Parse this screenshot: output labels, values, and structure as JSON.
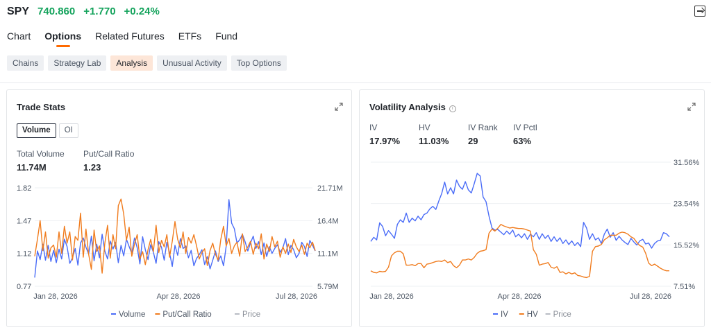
{
  "header": {
    "symbol": "SPY",
    "price": "740.860",
    "change": "+1.770",
    "change_pct": "+0.24%",
    "up_color": "#14a35c"
  },
  "tabs": [
    {
      "label": "Chart",
      "active": false
    },
    {
      "label": "Options",
      "active": true
    },
    {
      "label": "Related Futures",
      "active": false
    },
    {
      "label": "ETFs",
      "active": false
    },
    {
      "label": "Fund",
      "active": false
    }
  ],
  "subtabs": [
    {
      "label": "Chains",
      "active": false
    },
    {
      "label": "Strategy Lab",
      "active": false
    },
    {
      "label": "Analysis",
      "active": true
    },
    {
      "label": "Unusual Activity",
      "active": false
    },
    {
      "label": "Top Options",
      "active": false
    }
  ],
  "trade_stats": {
    "title": "Trade Stats",
    "toggle": [
      "Volume",
      "OI"
    ],
    "total_volume_label": "Total Volume",
    "total_volume": "11.74M",
    "pc_ratio_label": "Put/Call Ratio",
    "pc_ratio": "1.23"
  },
  "volatility": {
    "title": "Volatility Analysis",
    "iv_label": "IV",
    "iv": "17.97%",
    "hv_label": "HV",
    "hv": "11.03%",
    "rank_label": "IV Rank",
    "rank": "29",
    "pctl_label": "IV Pctl",
    "pctl": "63%"
  },
  "chart_data": [
    {
      "type": "line",
      "x_ticks": [
        "Jan 28, 2026",
        "Apr 28, 2026",
        "Jul 28, 2026"
      ],
      "y_left_ticks": [
        "1.82",
        "1.47",
        "1.12",
        "0.77"
      ],
      "y_left_range": [
        0.77,
        1.82
      ],
      "y_right_ticks": [
        "21.71M",
        "16.4M",
        "11.1M",
        "5.79M"
      ],
      "y_right_range": [
        5.79,
        21.71
      ],
      "legend": [
        "Volume",
        "Put/Call Ratio",
        "Price"
      ],
      "colors": {
        "Volume": "#4a6cf7",
        "Put/Call Ratio": "#f07c1e",
        "Price": "#b8bcc4"
      },
      "series": [
        {
          "name": "Volume",
          "axis": "right",
          "values": [
            7.2,
            11.5,
            10.1,
            12.6,
            10.0,
            12.4,
            9.8,
            11.6,
            9.6,
            11.8,
            10.2,
            13.4,
            12.2,
            9.5,
            10.4,
            11.9,
            9.2,
            12.8,
            13.6,
            12.1,
            11.0,
            13.9,
            9.9,
            12.6,
            10.4,
            14.2,
            11.5,
            10.2,
            13.1,
            11.8,
            12.9,
            9.6,
            12.4,
            10.7,
            13.4,
            12.2,
            11.1,
            13.6,
            12.0,
            9.4,
            13.8,
            11.7,
            10.1,
            12.5,
            11.3,
            9.5,
            13.0,
            12.1,
            10.0,
            12.9,
            11.2,
            9.0,
            12.4,
            10.8,
            13.5,
            11.9,
            12.3,
            10.4,
            11.6,
            9.1,
            10.3,
            10.9,
            11.7,
            9.3,
            10.6,
            8.6,
            10.0,
            11.5,
            9.8,
            10.7,
            9.1,
            12.3,
            19.8,
            16.0,
            15.1,
            12.8,
            13.3,
            14.2,
            13.0,
            11.5,
            12.8,
            13.9,
            11.9,
            13.0,
            10.9,
            12.8,
            10.6,
            12.2,
            11.1,
            11.9,
            12.5,
            11.3,
            12.0,
            13.5,
            10.9,
            12.4,
            11.7,
            10.4,
            11.1,
            12.9,
            12.2,
            10.6,
            13.2,
            12.4,
            11.5
          ]
        },
        {
          "name": "Put/Call Ratio",
          "axis": "left",
          "values": [
            1.09,
            1.27,
            1.47,
            1.15,
            1.35,
            1.07,
            1.18,
            1.21,
            1.08,
            1.35,
            1.12,
            1.41,
            1.23,
            1.35,
            1.05,
            1.3,
            1.26,
            1.55,
            1.08,
            1.38,
            1.11,
            0.95,
            1.37,
            1.14,
            1.2,
            0.91,
            1.23,
            1.42,
            1.07,
            1.32,
            1.17,
            1.63,
            1.7,
            1.54,
            1.26,
            1.4,
            1.09,
            1.22,
            1.32,
            1.06,
            1.14,
            1.0,
            1.16,
            1.27,
            1.14,
            1.42,
            1.13,
            1.26,
            1.19,
            1.32,
            1.08,
            1.25,
            1.46,
            1.27,
            1.18,
            1.35,
            1.12,
            1.29,
            1.23,
            1.32,
            1.2,
            1.06,
            1.13,
            1.17,
            0.99,
            1.15,
            1.23,
            1.11,
            1.05,
            1.27,
            1.41,
            1.2,
            1.28,
            1.12,
            1.2,
            1.24,
            1.09,
            1.33,
            1.14,
            1.19,
            1.25,
            1.11,
            1.23,
            1.17,
            1.33,
            1.06,
            1.22,
            1.14,
            1.3,
            1.19,
            1.25,
            1.08,
            1.19,
            1.12,
            1.22,
            1.13,
            1.27,
            1.19,
            1.14,
            1.21,
            1.11,
            1.23,
            1.18,
            1.24,
            1.15
          ]
        }
      ]
    },
    {
      "type": "line",
      "x_ticks": [
        "Jan 28, 2026",
        "Apr 28, 2026",
        "Jul 28, 2026"
      ],
      "y_right_ticks": [
        "31.56%",
        "23.54%",
        "15.52%",
        "7.51%"
      ],
      "y_range": [
        7.51,
        31.56
      ],
      "legend": [
        "IV",
        "HV",
        "Price"
      ],
      "colors": {
        "IV": "#4a6cf7",
        "HV": "#f07c1e",
        "Price": "#b8bcc4"
      },
      "series": [
        {
          "name": "IV",
          "values": [
            16.2,
            17.0,
            16.5,
            19.8,
            19.1,
            17.3,
            18.3,
            17.6,
            16.8,
            19.5,
            20.4,
            19.9,
            21.7,
            19.9,
            20.7,
            20.2,
            21.1,
            20.4,
            21.4,
            21.7,
            22.5,
            23.0,
            22.4,
            24.0,
            25.5,
            27.7,
            25.4,
            26.6,
            25.4,
            28.1,
            26.9,
            26.3,
            27.8,
            26.2,
            25.6,
            27.4,
            29.4,
            28.9,
            24.8,
            23.9,
            21.1,
            18.8,
            18.4,
            18.5,
            18.0,
            17.5,
            18.2,
            17.6,
            18.4,
            17.1,
            17.6,
            16.9,
            17.7,
            16.6,
            17.6,
            17.1,
            17.9,
            16.6,
            17.7,
            16.8,
            17.4,
            16.2,
            17.1,
            16.2,
            16.9,
            15.8,
            16.5,
            15.6,
            16.3,
            15.4,
            16.0,
            15.2,
            19.9,
            18.8,
            16.6,
            17.7,
            16.5,
            16.9,
            15.8,
            17.6,
            18.6,
            17.0,
            17.9,
            16.4,
            17.2,
            16.5,
            16.0,
            15.6,
            16.8,
            16.1,
            15.5,
            16.3,
            16.6,
            15.7,
            15.9,
            14.9,
            15.8,
            16.3,
            16.4,
            17.9,
            17.7,
            17.1
          ]
        },
        {
          "name": "HV",
          "values": [
            10.5,
            10.2,
            10.1,
            10.4,
            10.3,
            10.4,
            11.2,
            13.4,
            14.0,
            14.3,
            14.3,
            13.8,
            11.6,
            11.6,
            11.7,
            11.5,
            11.9,
            11.9,
            11.1,
            11.8,
            11.9,
            12.1,
            12.3,
            12.4,
            12.3,
            12.6,
            12.1,
            12.3,
            11.5,
            11.1,
            11.6,
            12.6,
            12.6,
            12.8,
            12.6,
            13.1,
            13.9,
            14.3,
            14.4,
            14.6,
            17.8,
            18.6,
            18.2,
            18.8,
            19.5,
            19.2,
            19.0,
            18.8,
            18.9,
            18.8,
            18.7,
            18.7,
            18.6,
            18.4,
            18.2,
            14.6,
            13.7,
            11.6,
            11.8,
            11.9,
            12.1,
            11.2,
            11.0,
            11.3,
            10.2,
            10.3,
            9.9,
            10.2,
            9.9,
            10.1,
            9.6,
            9.5,
            9.3,
            9.2,
            9.4,
            14.3,
            15.2,
            15.3,
            15.6,
            16.5,
            16.9,
            17.4,
            17.4,
            17.4,
            17.8,
            18.0,
            17.9,
            17.6,
            17.1,
            16.8,
            16.0,
            15.4,
            15.1,
            13.9,
            12.0,
            11.5,
            11.8,
            11.4,
            11.0,
            10.7,
            10.5,
            10.5
          ]
        }
      ]
    }
  ]
}
